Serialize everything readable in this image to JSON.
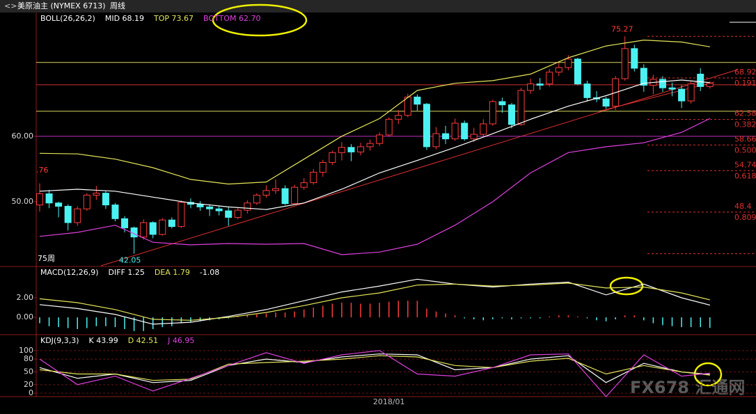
{
  "window": {
    "title": "美原油主 (NYMEX 6713)",
    "period": "周线",
    "watermark": "FX678 汇通网"
  },
  "chart_data": [
    {
      "type": "candlestick",
      "title": "BOLL(26,26,2)",
      "open": [
        49.5,
        51.2,
        49.8,
        49.3,
        46.8,
        48.9,
        51.0,
        51.3,
        49.5,
        47.4,
        46.0,
        44.6,
        46.8,
        45.0,
        47.2,
        46.2,
        49.9,
        49.6,
        49.2,
        48.9,
        48.6,
        47.6,
        48.7,
        49.8,
        51.0,
        51.7,
        52.0,
        49.7,
        52.2,
        52.9,
        54.5,
        56.0,
        57.5,
        58.3,
        57.6,
        58.4,
        58.9,
        60.2,
        62.6,
        63.2,
        66.0,
        64.9,
        58.4,
        60.4,
        59.6,
        62.0,
        59.6,
        60.3,
        61.9,
        65.3,
        64.8,
        61.8,
        67.0,
        68.0,
        68.0,
        69.8,
        70.5,
        71.8,
        68.0,
        65.9,
        65.7,
        64.6,
        68.8,
        73.4,
        70.4,
        67.8,
        68.7,
        67.4,
        67.2,
        65.4,
        69.5,
        67.6
      ],
      "high": [
        52.8,
        51.8,
        50.0,
        49.6,
        49.3,
        51.3,
        52.4,
        51.6,
        49.8,
        47.8,
        46.2,
        47.3,
        47.0,
        47.5,
        47.6,
        50.2,
        50.5,
        50.1,
        49.6,
        49.3,
        49.2,
        49.1,
        50.2,
        51.3,
        52.5,
        53.4,
        52.5,
        52.6,
        53.6,
        55.0,
        56.4,
        57.8,
        59.1,
        58.8,
        59.0,
        59.5,
        60.6,
        62.9,
        64.0,
        66.5,
        66.4,
        65.1,
        61.4,
        61.6,
        62.7,
        62.4,
        61.3,
        62.6,
        65.6,
        65.9,
        65.1,
        67.4,
        68.8,
        68.9,
        70.3,
        71.2,
        72.4,
        72.0,
        68.5,
        66.9,
        66.0,
        69.2,
        75.27,
        74.0,
        71.0,
        69.4,
        69.2,
        68.2,
        67.8,
        68.4,
        70.4,
        68.4
      ],
      "low": [
        48.5,
        49.0,
        47.6,
        45.6,
        46.3,
        48.6,
        50.3,
        48.9,
        47.0,
        45.3,
        42.05,
        44.2,
        44.4,
        44.8,
        45.9,
        46.0,
        49.0,
        48.6,
        47.8,
        47.9,
        46.3,
        47.3,
        48.2,
        49.5,
        50.6,
        51.2,
        49.5,
        49.5,
        51.8,
        52.6,
        53.8,
        55.6,
        56.3,
        56.2,
        57.1,
        57.8,
        58.5,
        59.9,
        61.9,
        62.9,
        63.9,
        57.9,
        58.0,
        58.8,
        59.3,
        59.3,
        59.1,
        60.0,
        61.6,
        63.6,
        61.2,
        61.6,
        66.5,
        67.1,
        67.6,
        69.2,
        70.1,
        67.8,
        65.3,
        65.2,
        64.2,
        64.0,
        68.5,
        69.9,
        66.8,
        66.4,
        66.8,
        66.1,
        64.3,
        65.0,
        66.9,
        67.3
      ],
      "close": [
        51.2,
        49.8,
        49.3,
        46.8,
        48.9,
        51.0,
        51.3,
        49.5,
        47.4,
        46.0,
        44.6,
        46.8,
        45.0,
        47.2,
        46.2,
        49.9,
        49.6,
        49.2,
        48.9,
        48.6,
        47.6,
        48.7,
        49.8,
        51.0,
        51.7,
        52.0,
        49.7,
        52.2,
        52.9,
        54.5,
        56.0,
        57.5,
        58.3,
        57.6,
        58.4,
        58.9,
        60.2,
        62.6,
        63.2,
        66.0,
        64.9,
        58.4,
        60.4,
        59.6,
        62.0,
        59.6,
        60.3,
        61.9,
        65.3,
        64.8,
        61.8,
        67.0,
        68.0,
        67.8,
        69.8,
        70.5,
        71.8,
        68.0,
        65.9,
        65.7,
        64.6,
        68.8,
        73.4,
        70.4,
        67.8,
        68.7,
        67.4,
        67.2,
        65.4,
        68.0,
        67.6,
        68.1
      ],
      "up_color": "#ff3c3c",
      "down_color": "#4cf2f2",
      "ylim": [
        40.2,
        78.7
      ],
      "yticks": [
        {
          "value": 50,
          "label": "50.00"
        },
        {
          "value": 60,
          "label": "60.00"
        }
      ],
      "series": [
        {
          "name": "MID 68.19",
          "color": "#ffffff",
          "x": [
            0,
            4,
            8,
            12,
            16,
            20,
            24,
            28,
            32,
            36,
            40,
            44,
            48,
            52,
            56,
            60,
            64,
            68,
            71
          ],
          "values": [
            51.6,
            51.9,
            51.6,
            50.7,
            49.8,
            49.2,
            48.8,
            49.8,
            51.9,
            54.4,
            56.3,
            58.3,
            60.4,
            62.6,
            64.6,
            66.2,
            68.1,
            68.6,
            68.19
          ]
        },
        {
          "name": "TOP 73.67",
          "color": "#e6e65a",
          "x": [
            0,
            4,
            8,
            12,
            16,
            20,
            24,
            28,
            32,
            36,
            40,
            44,
            48,
            52,
            56,
            60,
            64,
            68,
            71
          ],
          "values": [
            57.4,
            57.3,
            56.5,
            55.2,
            53.4,
            52.7,
            53.0,
            56.5,
            60.0,
            62.7,
            67.0,
            68.1,
            68.5,
            69.5,
            72.0,
            73.8,
            74.7,
            74.4,
            73.67
          ]
        },
        {
          "name": "BOTTOM 62.70",
          "color": "#e040e0",
          "x": [
            0,
            4,
            8,
            12,
            16,
            20,
            24,
            28,
            32,
            36,
            40,
            44,
            48,
            52,
            56,
            60,
            64,
            68,
            71
          ],
          "values": [
            44.7,
            45.3,
            46.4,
            43.8,
            43.4,
            43.6,
            43.5,
            43.6,
            41.9,
            42.3,
            43.5,
            46.4,
            50.0,
            54.4,
            57.5,
            58.4,
            59.0,
            60.6,
            62.7
          ]
        }
      ],
      "hlines": [
        {
          "value": 71.28,
          "color": "#d8d860"
        },
        {
          "value": 67.87,
          "color": "#d03030"
        },
        {
          "value": 63.83,
          "color": "#d8d860"
        },
        {
          "value": 60,
          "color": "#c030c0"
        }
      ],
      "fib_levels": [
        {
          "value": 75.27
        },
        {
          "value": 68.92,
          "ratio": "0.191"
        },
        {
          "value": 62.58,
          "ratio": "0.382"
        },
        {
          "value": 58.66,
          "ratio": "0.500"
        },
        {
          "value": 54.74,
          "ratio": "0.618"
        },
        {
          "value": 48.4,
          "ratio": "0.809"
        },
        {
          "value": 42.05
        }
      ],
      "annotations": [
        ".76",
        "75周"
      ]
    },
    {
      "type": "macd",
      "title": "MACD(12,26,9)",
      "ylim": [
        -1.7,
        5.2
      ],
      "yticks": [
        {
          "value": 2,
          "label": "2.00"
        },
        {
          "value": 0,
          "label": "0.00"
        }
      ],
      "bars": {
        "name": "-1.08",
        "up_color": "#ff3c3c",
        "down_color": "#4cf2f2",
        "values": [
          -0.6,
          -0.9,
          -1.0,
          -1.1,
          -1.2,
          -1.1,
          -0.9,
          -0.9,
          -1.0,
          -1.2,
          -1.4,
          -1.4,
          -1.2,
          -1.0,
          -0.9,
          -0.6,
          -0.5,
          -0.4,
          -0.3,
          -0.2,
          -0.1,
          0.1,
          0.2,
          0.3,
          0.4,
          0.5,
          0.5,
          0.6,
          0.8,
          1.0,
          1.2,
          1.4,
          1.5,
          1.5,
          1.4,
          1.4,
          1.5,
          1.6,
          1.7,
          1.7,
          1.7,
          0.9,
          0.6,
          0.4,
          0.2,
          -0.1,
          -0.2,
          -0.3,
          -0.2,
          -0.1,
          -0.2,
          -0.1,
          -0.1,
          -0.1,
          0.1,
          0.2,
          0.2,
          0.1,
          -0.1,
          -0.3,
          -0.4,
          -0.2,
          0.2,
          0.2,
          -0.3,
          -0.6,
          -0.8,
          -0.9,
          -1.0,
          -1.0,
          -1.0,
          -1.08
        ]
      },
      "series": [
        {
          "name": "DIFF 1.25",
          "color": "#ffffff",
          "x": [
            0,
            4,
            8,
            12,
            16,
            20,
            24,
            28,
            32,
            36,
            40,
            44,
            48,
            52,
            56,
            60,
            64,
            68,
            71
          ],
          "values": [
            1.3,
            0.9,
            0.3,
            -0.7,
            -0.5,
            0.1,
            0.8,
            1.7,
            2.6,
            3.2,
            3.9,
            3.4,
            3.1,
            3.4,
            3.6,
            2.3,
            3.4,
            2.0,
            1.25
          ]
        },
        {
          "name": "DEA 1.79",
          "color": "#e6e65a",
          "x": [
            0,
            4,
            8,
            12,
            16,
            20,
            24,
            28,
            32,
            36,
            40,
            44,
            48,
            52,
            56,
            60,
            64,
            68,
            71
          ],
          "values": [
            1.9,
            1.5,
            0.8,
            -0.2,
            -0.3,
            0.0,
            0.5,
            1.2,
            2.0,
            2.5,
            3.3,
            3.4,
            3.2,
            3.3,
            3.5,
            3.0,
            3.1,
            2.5,
            1.79
          ]
        }
      ]
    },
    {
      "type": "kdj",
      "title": "KDJ(9,3,3)",
      "ylim": [
        -8,
        134
      ],
      "yticks": [
        0,
        20,
        50,
        80,
        100
      ],
      "grid": true,
      "xticks": [
        {
          "value": 37,
          "label": "2018/01"
        }
      ],
      "series": [
        {
          "name": "K 43.99",
          "color": "#ffffff",
          "x": [
            0,
            4,
            8,
            12,
            16,
            20,
            24,
            28,
            32,
            36,
            40,
            44,
            48,
            52,
            56,
            60,
            64,
            68,
            71
          ],
          "values": [
            60,
            35,
            45,
            25,
            30,
            65,
            80,
            72,
            85,
            92,
            90,
            55,
            60,
            80,
            88,
            25,
            70,
            50,
            43.99
          ]
        },
        {
          "name": "D 42.51",
          "color": "#e6e65a",
          "x": [
            0,
            4,
            8,
            12,
            16,
            20,
            24,
            28,
            32,
            36,
            40,
            44,
            48,
            52,
            56,
            60,
            64,
            68,
            71
          ],
          "values": [
            55,
            45,
            45,
            30,
            33,
            68,
            72,
            75,
            80,
            88,
            85,
            65,
            60,
            75,
            82,
            45,
            65,
            50,
            42.51
          ]
        },
        {
          "name": "J 46.95",
          "color": "#e040e0",
          "x": [
            0,
            4,
            8,
            12,
            16,
            20,
            24,
            28,
            32,
            36,
            40,
            44,
            48,
            52,
            56,
            60,
            64,
            68,
            71
          ],
          "values": [
            80,
            20,
            40,
            5,
            35,
            65,
            95,
            70,
            90,
            100,
            45,
            40,
            60,
            90,
            92,
            -8,
            90,
            40,
            46.95
          ]
        }
      ]
    }
  ]
}
